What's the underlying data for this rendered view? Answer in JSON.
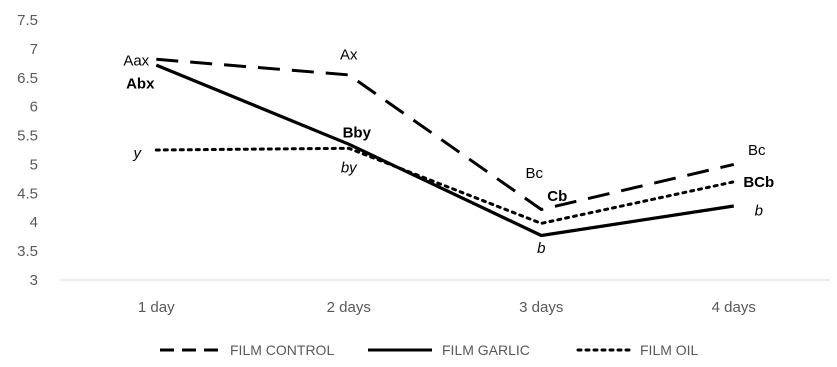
{
  "chart_data": {
    "type": "line",
    "title": "",
    "xlabel": "",
    "ylabel": "",
    "categories": [
      "1 day",
      "2 days",
      "3 days",
      "4 days"
    ],
    "ylim": [
      3,
      7.5
    ],
    "yticks": [
      3,
      3.5,
      4,
      4.5,
      5,
      5.5,
      6,
      6.5,
      7,
      7.5
    ],
    "ytick_labels": [
      "3",
      "3.5",
      "4",
      "4.5",
      "5",
      "5.5",
      "6",
      "6.5",
      "7",
      "7.5"
    ],
    "grid": false,
    "legend_position": "bottom",
    "series": [
      {
        "name": "FILM CONTROL",
        "style": "dashed",
        "color": "#000000",
        "values": [
          6.82,
          6.55,
          4.22,
          5.0
        ]
      },
      {
        "name": "FILM GARLIC",
        "style": "solid",
        "color": "#000000",
        "values": [
          6.72,
          5.35,
          3.77,
          4.28
        ]
      },
      {
        "name": "FILM OIL",
        "style": "dotted",
        "color": "#000000",
        "values": [
          5.25,
          5.28,
          3.98,
          4.7
        ]
      }
    ],
    "annotations": [
      {
        "text": "Aax",
        "style": "normal",
        "category": "1 day",
        "value": 6.8
      },
      {
        "text": "Abx",
        "style": "bold",
        "category": "1 day",
        "value": 6.4
      },
      {
        "text": "y",
        "style": "italic",
        "category": "1 day",
        "value": 5.2
      },
      {
        "text": "Ax",
        "style": "normal",
        "category": "2 days",
        "value": 6.9
      },
      {
        "text": "Bby",
        "style": "bold",
        "category": "2 days",
        "value": 5.55
      },
      {
        "text": "by",
        "style": "italic",
        "category": "2 days",
        "value": 4.95
      },
      {
        "text": "Bc",
        "style": "normal",
        "category": "3 days",
        "value": 4.85
      },
      {
        "text": "Cb",
        "style": "bold",
        "category": "3 days",
        "value": 4.45
      },
      {
        "text": "b",
        "style": "italic",
        "category": "3 days",
        "value": 3.55
      },
      {
        "text": "Bc",
        "style": "normal",
        "category": "4 days",
        "value": 5.25
      },
      {
        "text": "BCb",
        "style": "bold",
        "category": "4 days",
        "value": 4.7
      },
      {
        "text": "b",
        "style": "italic",
        "category": "4 days",
        "value": 4.2
      }
    ]
  }
}
